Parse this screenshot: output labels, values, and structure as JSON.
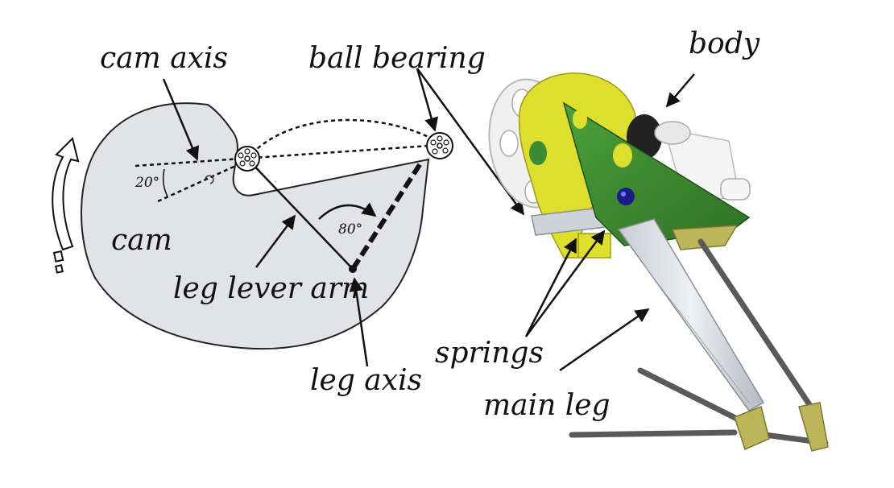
{
  "labels": {
    "cam_axis": "cam axis",
    "ball_bearing": "ball bearing",
    "body": "body",
    "angle_20": "20°",
    "angle_80": "80°",
    "cam": "cam",
    "leg_lever_arm": "leg lever arm",
    "leg_axis": "leg axis",
    "springs": "springs",
    "main_leg": "main leg"
  },
  "colors": {
    "cam_fill": "#e2e3e6",
    "yellow_plate": "#dede2c",
    "green_plate": "#3f8f32",
    "rods": "#5a5a5a",
    "leg_link": "#d8dbe0",
    "foot": "#bdb55a"
  }
}
